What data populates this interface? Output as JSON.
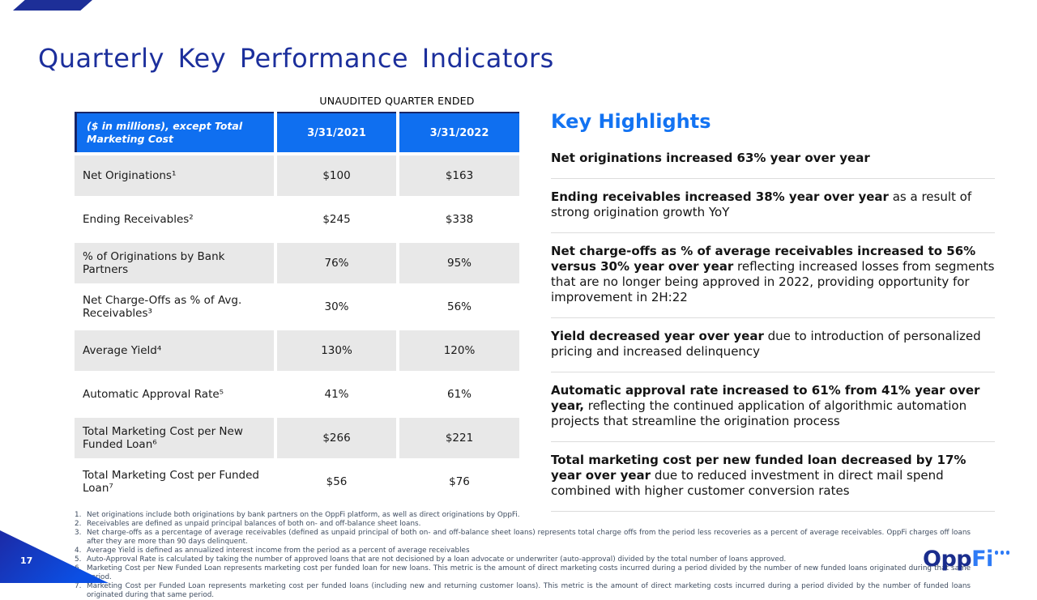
{
  "slide": {
    "title": "Quarterly Key Performance Indicators",
    "page_number": "17",
    "logo": {
      "part1": "Opp",
      "part2": "Fi"
    }
  },
  "table": {
    "caption": "UNAUDITED QUARTER ENDED",
    "header": {
      "label": "($ in millions), except Total Marketing Cost",
      "col2021": "3/31/2021",
      "col2022": "3/31/2022"
    },
    "rows": [
      {
        "label": "Net Originations¹",
        "v2021": "$100",
        "v2022": "$163"
      },
      {
        "label": "Ending Receivables²",
        "v2021": "$245",
        "v2022": "$338"
      },
      {
        "label": "% of Originations by Bank Partners",
        "v2021": "76%",
        "v2022": "95%"
      },
      {
        "label": "Net Charge-Offs as % of Avg. Receivables³",
        "v2021": "30%",
        "v2022": "56%"
      },
      {
        "label": "Average Yield⁴",
        "v2021": "130%",
        "v2022": "120%"
      },
      {
        "label": "Automatic Approval Rate⁵",
        "v2021": "41%",
        "v2022": "61%"
      },
      {
        "label": "Total Marketing Cost per New Funded Loan⁶",
        "v2021": "$266",
        "v2022": "$221"
      },
      {
        "label": "Total Marketing Cost per Funded Loan⁷",
        "v2021": "$56",
        "v2022": "$76"
      }
    ]
  },
  "highlights": {
    "title": "Key Highlights",
    "items": [
      {
        "bold": "Net originations increased 63% year over year",
        "rest": ""
      },
      {
        "bold": "Ending receivables increased 38% year over year",
        "rest": " as a result of strong origination growth YoY"
      },
      {
        "bold": "Net charge-offs as % of average receivables increased to 56% versus 30% year over year",
        "rest": " reflecting increased losses from segments that are no longer being approved in 2022, providing opportunity for improvement in 2H:22"
      },
      {
        "bold": "Yield decreased year over year",
        "rest": " due to introduction of personalized pricing and increased delinquency"
      },
      {
        "bold": "Automatic approval rate increased to 61% from 41% year over year,",
        "rest": " reflecting the continued application of algorithmic automation projects that streamline the origination process"
      },
      {
        "bold": "Total marketing cost per new funded loan decreased by 17% year over year",
        "rest": " due to reduced investment in direct mail spend combined with higher customer conversion rates"
      }
    ]
  },
  "footnotes": [
    {
      "n": "1.",
      "text": "Net originations include both originations by bank partners on the OppFi platform, as well as direct originations by OppFi."
    },
    {
      "n": "2.",
      "text": "Receivables are defined as unpaid principal balances of both on- and off-balance sheet loans."
    },
    {
      "n": "3.",
      "text": "Net charge-offs as a percentage of average receivables (defined as unpaid principal of both on- and off-balance sheet loans) represents total charge offs from the period less recoveries as a percent of average receivables. OppFi charges off loans after they are more than 90 days delinquent."
    },
    {
      "n": "4.",
      "text": "Average Yield is defined as annualized interest income from the period as a percent of average receivables"
    },
    {
      "n": "5.",
      "text": "Auto-Approval Rate is calculated by taking the number of approved loans that are not decisioned by a loan advocate or underwriter (auto-approval) divided by the total number of loans approved."
    },
    {
      "n": "6.",
      "text": "Marketing Cost per New Funded Loan represents marketing cost per funded loan for new loans. This metric is the amount of direct marketing costs incurred during a period divided by the number of new funded loans originated during that same period."
    },
    {
      "n": "7.",
      "text": "Marketing Cost per Funded Loan represents marketing cost per funded loans (including new and returning customer loans). This metric is the amount of direct marketing costs incurred during a period divided by the number of funded loans originated during that same period."
    }
  ],
  "colors": {
    "accent_blue": "#0F6FF0",
    "title_navy": "#1C2F9C",
    "row_gray": "#E8E8E8",
    "footnote_slate": "#3E4C60"
  }
}
